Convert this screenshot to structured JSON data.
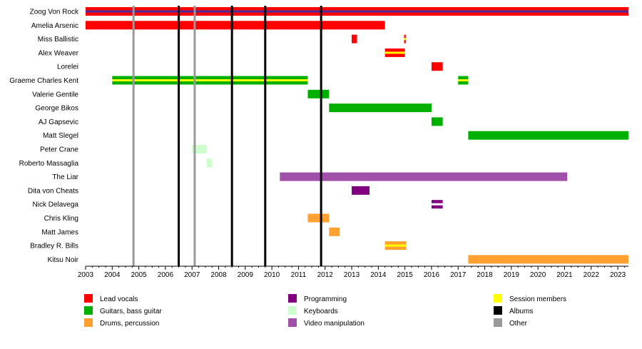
{
  "chart_data": {
    "type": "timeline",
    "xlim": [
      2003,
      2023.4
    ],
    "x_ticks": [
      "2003",
      "2004",
      "2005",
      "2006",
      "2007",
      "2008",
      "2009",
      "2010",
      "2011",
      "2012",
      "2013",
      "2014",
      "2015",
      "2016",
      "2017",
      "2018",
      "2019",
      "2020",
      "2021",
      "2022",
      "2023"
    ],
    "colors": {
      "vocals": "#ff0000",
      "guitar": "#00b000",
      "drums": "#ffa030",
      "programming": "#800080",
      "keyboards": "#ccffcc",
      "video": "#a050a8",
      "session": "#ffff00",
      "albums": "#000000",
      "other": "#999999",
      "vocals_inner": "#4b2d9b"
    },
    "members": [
      {
        "name": "Zoog Von Rock",
        "bars": [
          {
            "start": 2003.0,
            "end": 2023.4,
            "role": "vocals",
            "stripe": "vocals_inner"
          }
        ]
      },
      {
        "name": "Amelia Arsenic",
        "bars": [
          {
            "start": 2003.0,
            "end": 2014.25,
            "role": "vocals"
          }
        ]
      },
      {
        "name": "Miss Ballistic",
        "bars": [
          {
            "start": 2013.0,
            "end": 2013.2,
            "role": "vocals"
          },
          {
            "start": 2014.97,
            "end": 2015.03,
            "role": "vocals",
            "stripe": "session"
          }
        ]
      },
      {
        "name": "Alex Weaver",
        "bars": [
          {
            "start": 2014.25,
            "end": 2015.0,
            "role": "vocals",
            "stripe": "session"
          }
        ]
      },
      {
        "name": "Lorelei",
        "bars": [
          {
            "start": 2016.0,
            "end": 2016.42,
            "role": "vocals"
          }
        ]
      },
      {
        "name": "Graeme Charles Kent",
        "bars": [
          {
            "start": 2004.0,
            "end": 2011.35,
            "role": "guitar",
            "stripe": "session"
          },
          {
            "start": 2017.0,
            "end": 2017.38,
            "role": "guitar",
            "stripe": "session"
          }
        ]
      },
      {
        "name": "Valerie Gentile",
        "bars": [
          {
            "start": 2011.35,
            "end": 2012.15,
            "role": "guitar"
          }
        ]
      },
      {
        "name": "George Bikos",
        "bars": [
          {
            "start": 2012.15,
            "end": 2016.0,
            "role": "guitar"
          }
        ]
      },
      {
        "name": "AJ Gapsevic",
        "bars": [
          {
            "start": 2016.0,
            "end": 2016.42,
            "role": "guitar"
          }
        ]
      },
      {
        "name": "Matt Slegel",
        "bars": [
          {
            "start": 2017.38,
            "end": 2023.4,
            "role": "guitar"
          }
        ]
      },
      {
        "name": "Peter Crane",
        "bars": [
          {
            "start": 2007.0,
            "end": 2007.55,
            "role": "keyboards"
          }
        ]
      },
      {
        "name": "Roberto Massaglia",
        "bars": [
          {
            "start": 2007.55,
            "end": 2007.75,
            "role": "keyboards"
          }
        ]
      },
      {
        "name": "The Liar",
        "bars": [
          {
            "start": 2010.3,
            "end": 2021.1,
            "role": "video"
          }
        ]
      },
      {
        "name": "Dita von Cheats",
        "bars": [
          {
            "start": 2013.0,
            "end": 2013.67,
            "role": "programming"
          }
        ]
      },
      {
        "name": "Nick Delavega",
        "bars": [
          {
            "start": 2016.0,
            "end": 2016.42,
            "role": "programming",
            "stripe": "#ffffff"
          }
        ]
      },
      {
        "name": "Chris Kling",
        "bars": [
          {
            "start": 2011.35,
            "end": 2012.15,
            "role": "drums"
          }
        ]
      },
      {
        "name": "Matt James",
        "bars": [
          {
            "start": 2012.15,
            "end": 2012.55,
            "role": "drums"
          }
        ]
      },
      {
        "name": "Bradley R. Bills",
        "bars": [
          {
            "start": 2014.25,
            "end": 2015.05,
            "role": "drums",
            "stripe": "session"
          }
        ]
      },
      {
        "name": "Kitsu Noir",
        "bars": [
          {
            "start": 2017.38,
            "end": 2023.4,
            "role": "drums"
          }
        ]
      }
    ],
    "albums": [
      2006.5,
      2008.5,
      2009.75,
      2011.85
    ],
    "other_events": [
      2004.8,
      2007.1
    ],
    "legend": [
      {
        "label": "Lead vocals",
        "role": "vocals"
      },
      {
        "label": "Programming",
        "role": "programming"
      },
      {
        "label": "Session members",
        "role": "session"
      },
      {
        "label": "Guitars, bass guitar",
        "role": "guitar"
      },
      {
        "label": "Keyboards",
        "role": "keyboards"
      },
      {
        "label": "Albums",
        "role": "albums"
      },
      {
        "label": "Drums, percussion",
        "role": "drums"
      },
      {
        "label": "Video manipulation",
        "role": "video"
      },
      {
        "label": "Other",
        "role": "other"
      }
    ]
  }
}
